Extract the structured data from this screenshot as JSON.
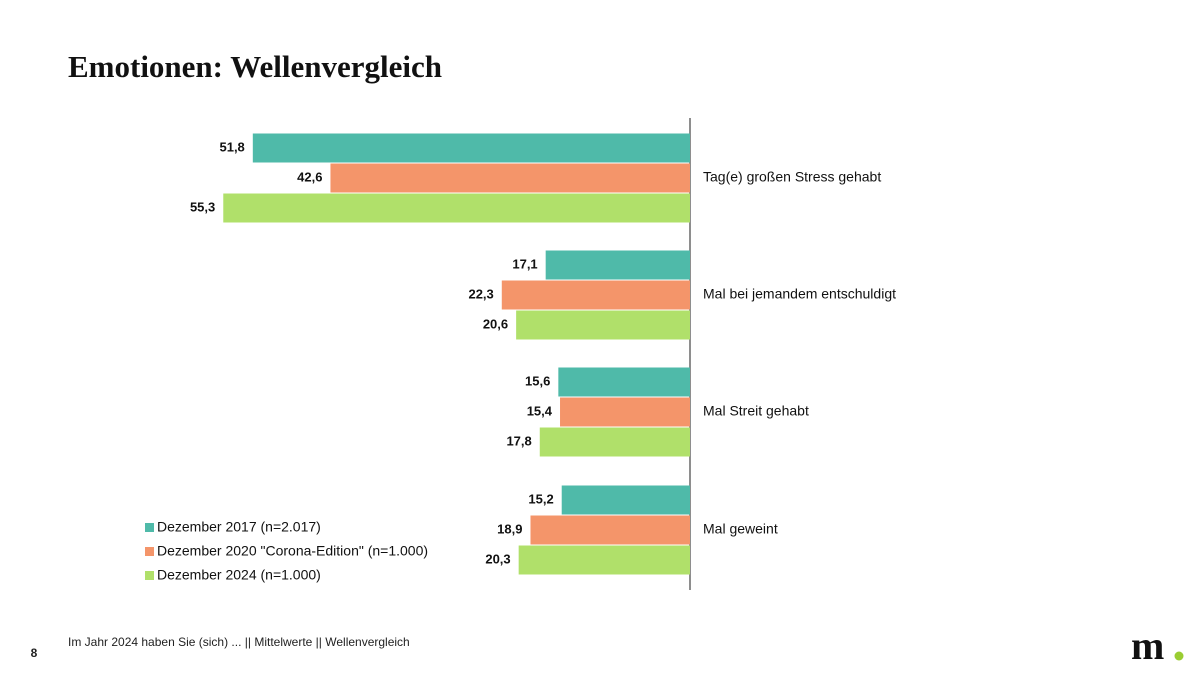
{
  "chart_data": {
    "type": "bar",
    "orientation": "horizontal",
    "title": "Emotionen: Wellenvergleich",
    "categories": [
      "Tag(e) großen Stress gehabt",
      "Mal bei jemandem entschuldigt",
      "Mal Streit gehabt",
      "Mal geweint"
    ],
    "series": [
      {
        "name": "Dezember 2017 (n=2.017)",
        "color": "#4fbaa9",
        "values": [
          51.8,
          17.1,
          15.6,
          15.2
        ],
        "value_labels": [
          "51,8",
          "17,1",
          "15,6",
          "15,2"
        ]
      },
      {
        "name": "Dezember 2020 \"Corona-Edition\" (n=1.000)",
        "color": "#f4956a",
        "values": [
          42.6,
          22.3,
          15.4,
          18.9
        ],
        "value_labels": [
          "42,6",
          "22,3",
          "15,4",
          "18,9"
        ]
      },
      {
        "name": "Dezember 2024 (n=1.000)",
        "color": "#b0e06a",
        "values": [
          55.3,
          20.6,
          17.8,
          20.3
        ],
        "value_labels": [
          "55,3",
          "20,6",
          "17,8",
          "20,3"
        ]
      }
    ]
  },
  "footer": "Im Jahr 2024 haben Sie (sich) ... || Mittelwerte || Wellenvergleich",
  "page_number": "8",
  "logo": "m"
}
